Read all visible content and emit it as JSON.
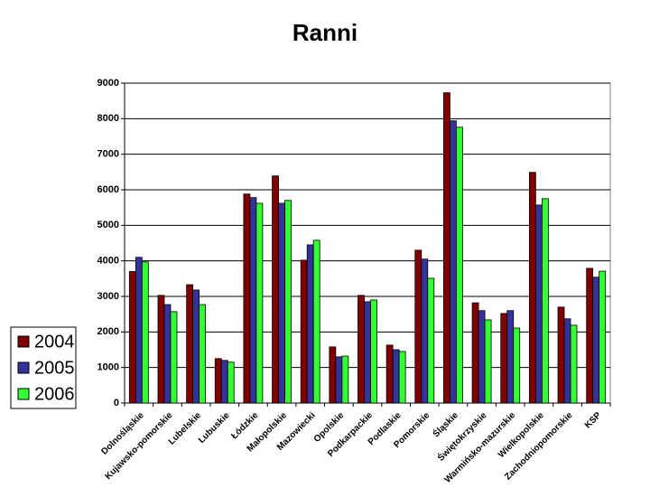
{
  "chart_data": {
    "type": "bar",
    "title": "Ranni",
    "categories": [
      "Dolnośląskie",
      "Kujawsko-pomorskie",
      "Lubelskie",
      "Lubuskie",
      "Łódzkie",
      "Małopolskie",
      "Mazowiecki",
      "Opolskie",
      "Podkarpackie",
      "Podlaskie",
      "Pomorskie",
      "Śląskie",
      "Świętokrzyskie",
      "Warmińsko-mazurskie",
      "Wielkopolskie",
      "Zachodniopomorskie",
      "KSP"
    ],
    "series": [
      {
        "name": "2004",
        "color": "#800000",
        "values": [
          3700,
          3030,
          3330,
          1250,
          5880,
          6390,
          4020,
          1580,
          3030,
          1630,
          4300,
          8730,
          2820,
          2520,
          6490,
          2700,
          3790
        ]
      },
      {
        "name": "2005",
        "color": "#333399",
        "values": [
          4100,
          2770,
          3180,
          1200,
          5780,
          5620,
          4450,
          1300,
          2850,
          1500,
          4050,
          7940,
          2600,
          2600,
          5570,
          2370,
          3540
        ]
      },
      {
        "name": "2006",
        "color": "#33ff33",
        "values": [
          3970,
          2570,
          2770,
          1150,
          5620,
          5700,
          4580,
          1320,
          2900,
          1450,
          3510,
          7760,
          2340,
          2110,
          5750,
          2190,
          3710
        ]
      }
    ],
    "ylim": [
      0,
      9000
    ],
    "yticks": [
      0,
      1000,
      2000,
      3000,
      4000,
      5000,
      6000,
      7000,
      8000,
      9000
    ],
    "grid": true,
    "legend": "left"
  }
}
